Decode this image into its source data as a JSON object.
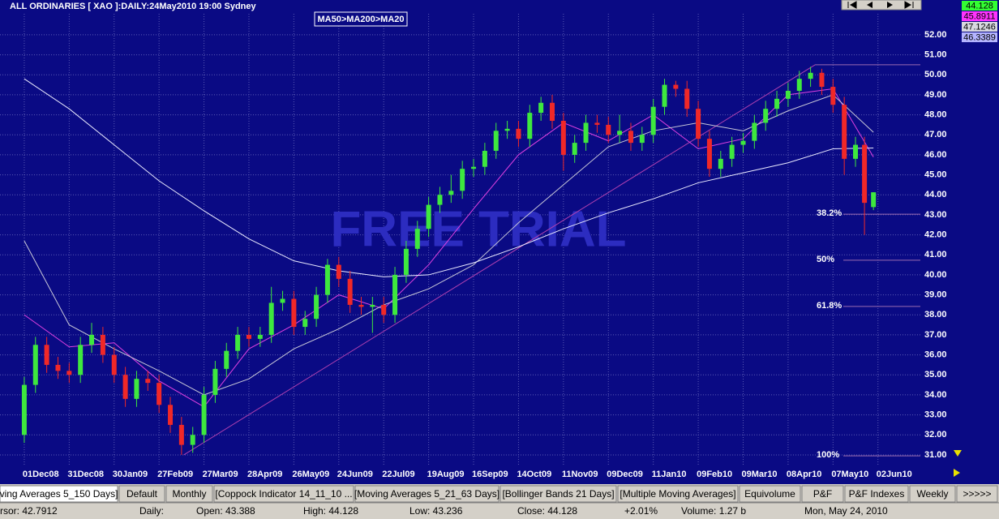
{
  "chart_data": {
    "type": "candlestick",
    "title": "ALL ORDINARIES [ XAO ]:DAILY:24May2010 19:00 Sydney",
    "annotation": "MA50>MA200>MA20",
    "watermark": "FREE TRIAL",
    "x": [
      0,
      5,
      10,
      15,
      20,
      25,
      30,
      35,
      40,
      45,
      50,
      55,
      60,
      65,
      70,
      75,
      80,
      85,
      90,
      95,
      100,
      105,
      110,
      115,
      120,
      125,
      130,
      135,
      140,
      145,
      150,
      155,
      160,
      165,
      170,
      175,
      180,
      185,
      190,
      195,
      200,
      205,
      210,
      215,
      220,
      225,
      230,
      235,
      240,
      245,
      250,
      255,
      260,
      265,
      270,
      275,
      280,
      285,
      290,
      295,
      300,
      305,
      310,
      315,
      320,
      325,
      330,
      335,
      340,
      345,
      350,
      355,
      360,
      365,
      370,
      374,
      378
    ],
    "open": [
      32.0,
      34.5,
      36.5,
      35.5,
      35.2,
      35.0,
      36.5,
      37.0,
      36.0,
      35.0,
      33.8,
      34.8,
      34.6,
      33.5,
      32.5,
      31.5,
      32.0,
      34.0,
      35.3,
      36.2,
      37.0,
      36.8,
      37.0,
      38.6,
      38.8,
      37.4,
      37.8,
      39.0,
      40.5,
      39.8,
      38.5,
      38.4,
      38.5,
      38.0,
      40.0,
      41.3,
      42.3,
      43.5,
      44.0,
      44.2,
      45.3,
      45.4,
      46.2,
      47.2,
      47.3,
      46.8,
      48.1,
      48.6,
      47.7,
      46.0,
      46.6,
      47.6,
      47.5,
      47.0,
      47.2,
      46.6,
      47.0,
      48.4,
      49.5,
      49.3,
      48.3,
      46.8,
      45.3,
      45.8,
      46.5,
      46.7,
      47.6,
      48.3,
      48.8,
      49.2,
      49.8,
      50.1,
      49.4,
      48.5,
      45.8,
      46.5,
      43.388
    ],
    "high": [
      34.9,
      36.9,
      36.9,
      35.9,
      35.6,
      36.9,
      37.6,
      37.4,
      36.4,
      35.4,
      35.2,
      35.2,
      35.0,
      33.9,
      32.9,
      32.4,
      34.4,
      35.7,
      36.6,
      37.4,
      37.4,
      37.4,
      39.4,
      39.2,
      39.2,
      38.2,
      39.4,
      40.8,
      40.9,
      40.2,
      38.9,
      38.9,
      38.9,
      40.4,
      41.7,
      42.7,
      43.9,
      44.4,
      45.0,
      45.7,
      45.8,
      46.6,
      47.6,
      47.7,
      47.7,
      48.5,
      48.9,
      49.0,
      48.1,
      47.0,
      48.0,
      48.0,
      47.9,
      48.0,
      47.6,
      47.4,
      48.8,
      49.8,
      49.7,
      49.7,
      48.7,
      47.2,
      46.2,
      46.9,
      47.1,
      48.0,
      48.7,
      49.2,
      49.6,
      50.2,
      50.4,
      50.3,
      49.8,
      48.9,
      46.9,
      46.9,
      44.128
    ],
    "low": [
      31.6,
      34.1,
      35.1,
      34.8,
      34.6,
      34.6,
      36.1,
      35.6,
      34.6,
      33.4,
      33.4,
      34.2,
      33.1,
      32.1,
      31.0,
      31.1,
      31.6,
      33.6,
      34.9,
      35.8,
      36.4,
      36.4,
      36.6,
      38.2,
      37.0,
      37.0,
      37.4,
      38.6,
      39.4,
      38.1,
      38.0,
      37.1,
      37.6,
      37.6,
      39.6,
      40.9,
      41.9,
      43.1,
      43.6,
      43.8,
      44.9,
      45.0,
      45.8,
      46.8,
      46.4,
      46.4,
      47.7,
      47.3,
      45.2,
      45.6,
      46.2,
      47.1,
      46.6,
      46.6,
      46.2,
      46.2,
      46.6,
      48.0,
      48.9,
      47.9,
      46.4,
      44.9,
      44.9,
      45.4,
      46.1,
      46.3,
      47.2,
      47.9,
      48.4,
      48.8,
      49.4,
      49.0,
      48.1,
      45.0,
      45.4,
      42.0,
      43.236
    ],
    "close": [
      34.5,
      36.5,
      35.5,
      35.2,
      35.0,
      36.5,
      37.0,
      36.0,
      35.0,
      33.8,
      34.8,
      34.6,
      33.5,
      32.5,
      31.5,
      32.0,
      34.0,
      35.3,
      36.2,
      37.0,
      36.8,
      37.0,
      38.6,
      38.8,
      37.4,
      37.8,
      39.0,
      40.5,
      39.8,
      38.5,
      38.4,
      38.5,
      38.0,
      40.0,
      41.3,
      42.3,
      43.5,
      44.0,
      44.2,
      45.3,
      45.4,
      46.2,
      47.2,
      47.3,
      46.8,
      48.1,
      48.6,
      47.7,
      46.0,
      46.6,
      47.6,
      47.5,
      47.0,
      47.2,
      46.6,
      47.0,
      48.4,
      49.5,
      49.3,
      48.3,
      46.8,
      45.3,
      45.8,
      46.5,
      46.7,
      47.6,
      48.3,
      48.8,
      49.2,
      49.8,
      50.1,
      49.4,
      48.5,
      45.8,
      46.5,
      43.6,
      44.128
    ],
    "up_color": "#3ee83e",
    "down_color": "#f02828",
    "close_label_color": "#33ff33",
    "lines": [
      {
        "color": "#e040e0",
        "label_color": "#ff33ff",
        "x": [
          0,
          20,
          40,
          60,
          80,
          100,
          120,
          140,
          160,
          180,
          200,
          220,
          240,
          260,
          280,
          300,
          320,
          340,
          360,
          378
        ],
        "values": [
          38,
          36.4,
          36.6,
          34.7,
          33.4,
          36.3,
          37.5,
          39.0,
          38.3,
          40.5,
          43.3,
          46.0,
          47.6,
          46.7,
          48.0,
          46.3,
          46.8,
          49.0,
          49.3,
          45.8911
        ]
      },
      {
        "color": "#c8c8d8",
        "label_color": "#d8d8e0",
        "x": [
          0,
          20,
          40,
          60,
          80,
          100,
          120,
          140,
          160,
          180,
          200,
          220,
          240,
          260,
          280,
          300,
          320,
          340,
          360,
          378
        ],
        "values": [
          41.7,
          37.5,
          36.3,
          35.2,
          34.0,
          34.8,
          36.3,
          37.3,
          38.5,
          39.3,
          40.5,
          42.6,
          44.5,
          46.4,
          47.2,
          47.6,
          47.2,
          48.2,
          49.0,
          47.1246
        ]
      },
      {
        "color": "#eaeaff",
        "label_color": "#b4b4ff",
        "x": [
          0,
          20,
          40,
          60,
          80,
          100,
          120,
          140,
          160,
          180,
          200,
          220,
          240,
          260,
          280,
          300,
          320,
          340,
          360,
          378
        ],
        "values": [
          49.8,
          48.3,
          46.5,
          44.7,
          43.2,
          41.8,
          40.7,
          40.2,
          39.9,
          40.0,
          40.6,
          41.4,
          42.3,
          43.1,
          43.8,
          44.6,
          45.1,
          45.6,
          46.3,
          46.3389
        ]
      }
    ],
    "trendline": {
      "color": "#b040b0",
      "x": [
        71,
        352
      ],
      "values": [
        31.0,
        50.5
      ]
    },
    "fib": {
      "color": "#9a6ab0",
      "top": 50.5,
      "levels": [
        {
          "label": "38.2%",
          "value": 43.03
        },
        {
          "label": "50%",
          "value": 40.73
        },
        {
          "label": "61.8%",
          "value": 38.42
        },
        {
          "label": "100%",
          "value": 30.95
        }
      ]
    },
    "xlim": [
      -10.8,
      411.5
    ],
    "xticks": [
      {
        "value": 0,
        "label": "01Dec08"
      },
      {
        "value": 20,
        "label": "31Dec08"
      },
      {
        "value": 40,
        "label": "30Jan09"
      },
      {
        "value": 60,
        "label": "27Feb09"
      },
      {
        "value": 80,
        "label": "27Mar09"
      },
      {
        "value": 100,
        "label": "28Apr09"
      },
      {
        "value": 120,
        "label": "26May09"
      },
      {
        "value": 140,
        "label": "24Jun09"
      },
      {
        "value": 160,
        "label": "22Jul09"
      },
      {
        "value": 180,
        "label": "19Aug09"
      },
      {
        "value": 200,
        "label": "16Sep09"
      },
      {
        "value": 220,
        "label": "14Oct09"
      },
      {
        "value": 240,
        "label": "11Nov09"
      },
      {
        "value": 260,
        "label": "09Dec09"
      },
      {
        "value": 280,
        "label": "11Jan10"
      },
      {
        "value": 300,
        "label": "09Feb10"
      },
      {
        "value": 320,
        "label": "09Mar10"
      },
      {
        "value": 340,
        "label": "08Apr10"
      },
      {
        "value": 360,
        "label": "07May10"
      },
      {
        "value": 380,
        "label": "02Jun10"
      }
    ],
    "ylim": [
      30.43,
      53.05
    ],
    "yticks": [
      {
        "value": 31,
        "label": "31.00"
      },
      {
        "value": 32,
        "label": "32.00"
      },
      {
        "value": 33,
        "label": "33.00"
      },
      {
        "value": 34,
        "label": "34.00"
      },
      {
        "value": 35,
        "label": "35.00"
      },
      {
        "value": 36,
        "label": "36.00"
      },
      {
        "value": 37,
        "label": "37.00"
      },
      {
        "value": 38,
        "label": "38.00"
      },
      {
        "value": 39,
        "label": "39.00"
      },
      {
        "value": 40,
        "label": "40.00"
      },
      {
        "value": 41,
        "label": "41.00"
      },
      {
        "value": 42,
        "label": "42.00"
      },
      {
        "value": 43,
        "label": "43.00"
      },
      {
        "value": 44,
        "label": "44.00"
      },
      {
        "value": 45,
        "label": "45.00"
      },
      {
        "value": 46,
        "label": "46.00"
      },
      {
        "value": 47,
        "label": "47.00"
      },
      {
        "value": 48,
        "label": "48.00"
      },
      {
        "value": 49,
        "label": "49.00"
      },
      {
        "value": 50,
        "label": "50.00"
      },
      {
        "value": 51,
        "label": "51.00"
      },
      {
        "value": 52,
        "label": "52.00"
      }
    ],
    "grid": true
  },
  "tabs": [
    "ving Averages 5_150 Days]",
    "Default",
    "Monthly",
    "[Coppock Indicator 14_11_10 ...",
    "[Moving Averages 5_21_63 Days]",
    "[Bollinger Bands 21 Days]",
    "[Multiple Moving Averages]",
    "Equivolume",
    "P&F",
    "P&F Indexes",
    "Weekly",
    ">>>>>"
  ],
  "status": [
    "rsor: 42.7912",
    "Daily:",
    "Open: 43.388",
    "High: 44.128",
    "Low: 43.236",
    "Close: 44.128",
    "+2.01%",
    "Volume: 1.27 b",
    "Mon, May 24, 2010"
  ]
}
